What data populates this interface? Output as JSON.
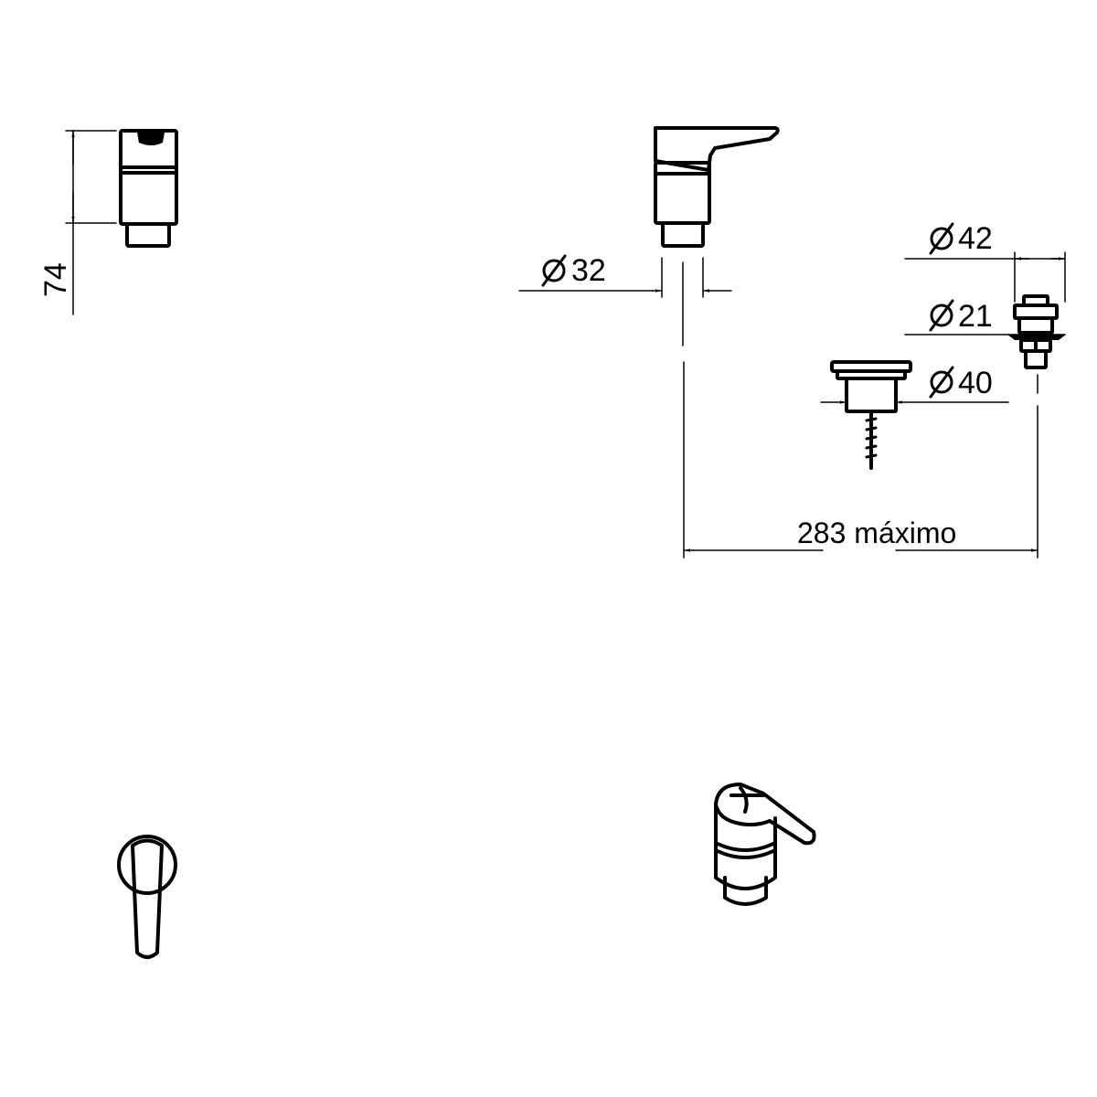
{
  "dimensions": {
    "height": "74",
    "dia_32": "32",
    "dia_42": "42",
    "dia_21": "21",
    "dia_40": "40",
    "spacing": "283 máximo"
  }
}
